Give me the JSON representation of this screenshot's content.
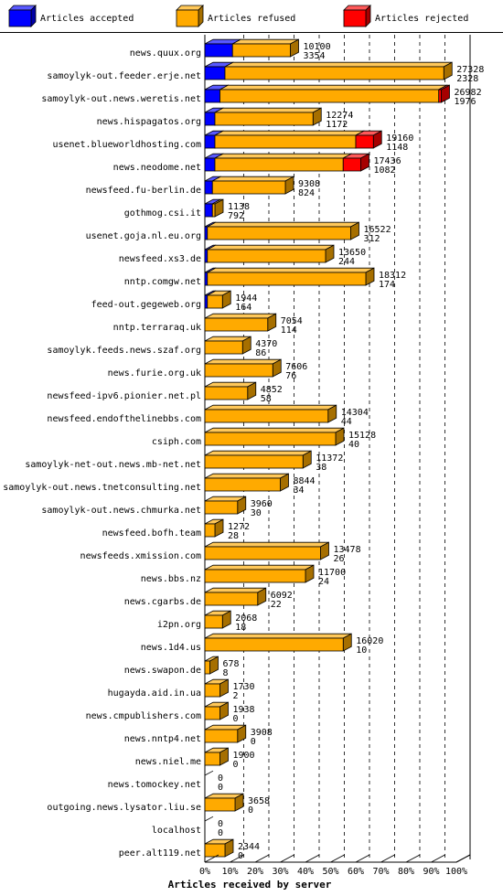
{
  "chart_data": {
    "type": "bar",
    "orientation": "horizontal",
    "stacked": true,
    "xlabel": "Articles received by server",
    "xlim": [
      0,
      100
    ],
    "x_unit": "percent",
    "x_ticks": [
      "0%",
      "10%",
      "20%",
      "30%",
      "40%",
      "50%",
      "60%",
      "70%",
      "80%",
      "90%",
      "100%"
    ],
    "grid": true,
    "legend_position": "top",
    "legend": [
      {
        "label": "Articles accepted",
        "color": "#0000ff"
      },
      {
        "label": "Articles refused",
        "color": "#ffaa00"
      },
      {
        "label": "Articles rejected",
        "color": "#ff0000"
      }
    ],
    "categories": [
      {
        "name": "news.quux.org",
        "total": "10100",
        "second": "3354",
        "pct": [
          11,
          23,
          0
        ]
      },
      {
        "name": "samoylyk-out.feeder.erje.net",
        "total": "27328",
        "second": "2328",
        "pct": [
          8,
          87,
          0
        ]
      },
      {
        "name": "samoylyk-out.news.weretis.net",
        "total": "26982",
        "second": "1976",
        "pct": [
          6,
          87,
          1
        ]
      },
      {
        "name": "news.hispagatos.org",
        "total": "12274",
        "second": "1172",
        "pct": [
          4,
          39,
          0
        ]
      },
      {
        "name": "usenet.blueworldhosting.com",
        "total": "19160",
        "second": "1148",
        "pct": [
          4,
          56,
          7
        ]
      },
      {
        "name": "news.neodome.net",
        "total": "17436",
        "second": "1082",
        "pct": [
          4,
          51,
          7
        ]
      },
      {
        "name": "newsfeed.fu-berlin.de",
        "total": "9308",
        "second": "824",
        "pct": [
          3,
          29,
          0
        ]
      },
      {
        "name": "gothmog.csi.it",
        "total": "1138",
        "second": "792",
        "pct": [
          3,
          1,
          0
        ]
      },
      {
        "name": "usenet.goja.nl.eu.org",
        "total": "16522",
        "second": "312",
        "pct": [
          1,
          57,
          0
        ]
      },
      {
        "name": "newsfeed.xs3.de",
        "total": "13650",
        "second": "244",
        "pct": [
          1,
          47,
          0
        ]
      },
      {
        "name": "nntp.comgw.net",
        "total": "18312",
        "second": "174",
        "pct": [
          1,
          63,
          0
        ]
      },
      {
        "name": "feed-out.gegeweb.org",
        "total": "1944",
        "second": "164",
        "pct": [
          1,
          6,
          0
        ]
      },
      {
        "name": "nntp.terraraq.uk",
        "total": "7054",
        "second": "114",
        "pct": [
          0,
          25,
          0
        ]
      },
      {
        "name": "samoylyk.feeds.news.szaf.org",
        "total": "4370",
        "second": "86",
        "pct": [
          0,
          15,
          0
        ]
      },
      {
        "name": "news.furie.org.uk",
        "total": "7606",
        "second": "76",
        "pct": [
          0,
          27,
          0
        ]
      },
      {
        "name": "newsfeed-ipv6.pionier.net.pl",
        "total": "4852",
        "second": "58",
        "pct": [
          0,
          17,
          0
        ]
      },
      {
        "name": "newsfeed.endofthelinebbs.com",
        "total": "14304",
        "second": "44",
        "pct": [
          0,
          49,
          0
        ]
      },
      {
        "name": "csiph.com",
        "total": "15128",
        "second": "40",
        "pct": [
          0,
          52,
          0
        ]
      },
      {
        "name": "samoylyk-net-out.news.mb-net.net",
        "total": "11372",
        "second": "38",
        "pct": [
          0,
          39,
          0
        ]
      },
      {
        "name": "samoylyk-out.news.tnetconsulting.net",
        "total": "8844",
        "second": "34",
        "pct": [
          0,
          30,
          0
        ]
      },
      {
        "name": "samoylyk-out.news.chmurka.net",
        "total": "3960",
        "second": "30",
        "pct": [
          0,
          13,
          0
        ]
      },
      {
        "name": "newsfeed.bofh.team",
        "total": "1272",
        "second": "28",
        "pct": [
          0,
          4,
          0
        ]
      },
      {
        "name": "newsfeeds.xmission.com",
        "total": "13478",
        "second": "26",
        "pct": [
          0,
          46,
          0
        ]
      },
      {
        "name": "news.bbs.nz",
        "total": "11700",
        "second": "24",
        "pct": [
          0,
          40,
          0
        ]
      },
      {
        "name": "news.cgarbs.de",
        "total": "6092",
        "second": "22",
        "pct": [
          0,
          21,
          0
        ]
      },
      {
        "name": "i2pn.org",
        "total": "2068",
        "second": "18",
        "pct": [
          0,
          7,
          0
        ]
      },
      {
        "name": "news.1d4.us",
        "total": "16020",
        "second": "10",
        "pct": [
          0,
          55,
          0
        ]
      },
      {
        "name": "news.swapon.de",
        "total": "678",
        "second": "8",
        "pct": [
          0,
          2,
          0
        ]
      },
      {
        "name": "hugayda.aid.in.ua",
        "total": "1730",
        "second": "2",
        "pct": [
          0,
          6,
          0
        ]
      },
      {
        "name": "news.cmpublishers.com",
        "total": "1938",
        "second": "0",
        "pct": [
          0,
          6,
          0
        ]
      },
      {
        "name": "news.nntp4.net",
        "total": "3908",
        "second": "0",
        "pct": [
          0,
          13,
          0
        ]
      },
      {
        "name": "news.niel.me",
        "total": "1900",
        "second": "0",
        "pct": [
          0,
          6,
          0
        ]
      },
      {
        "name": "news.tomockey.net",
        "total": "0",
        "second": "0",
        "pct": [
          0,
          0,
          0
        ]
      },
      {
        "name": "outgoing.news.lysator.liu.se",
        "total": "3658",
        "second": "0",
        "pct": [
          0,
          12,
          0
        ]
      },
      {
        "name": "localhost",
        "total": "0",
        "second": "0",
        "pct": [
          0,
          0,
          0
        ]
      },
      {
        "name": "peer.alt119.net",
        "total": "2344",
        "second": "0",
        "pct": [
          0,
          8,
          0
        ]
      }
    ]
  }
}
